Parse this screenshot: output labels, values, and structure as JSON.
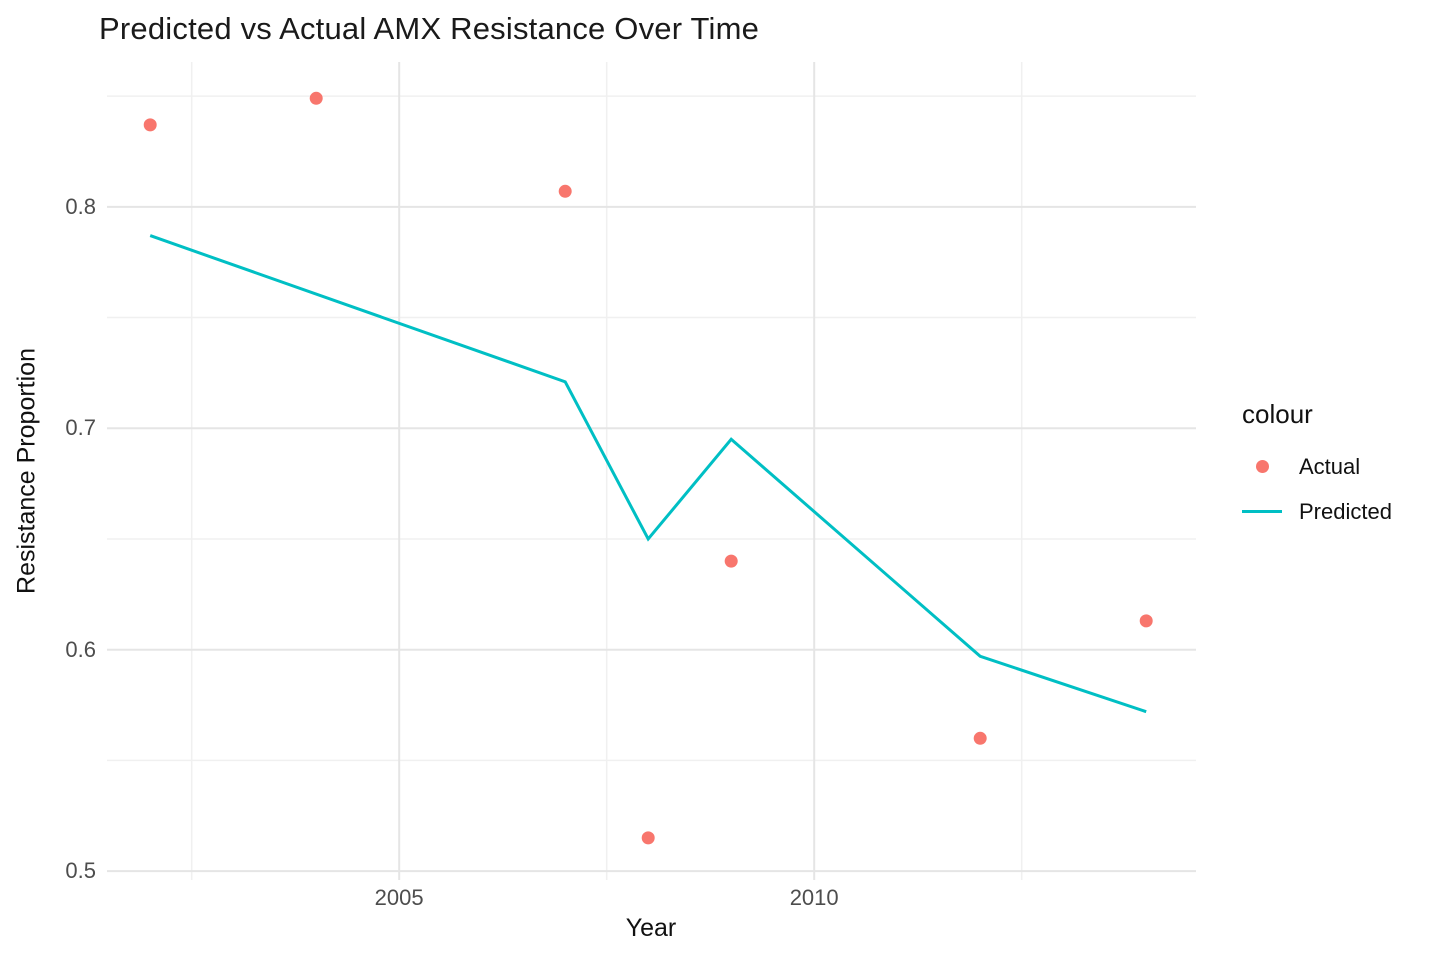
{
  "title": "Predicted vs Actual AMX Resistance Over Time",
  "axes": {
    "x": {
      "label": "Year",
      "tick_labels": [
        "2005",
        "2010"
      ]
    },
    "y": {
      "label": "Resistance Proportion",
      "tick_labels": [
        "0.5",
        "0.6",
        "0.7",
        "0.8"
      ]
    }
  },
  "legend": {
    "title": "colour",
    "items": [
      {
        "label": "Actual",
        "marker": "point",
        "color": "#F8766D"
      },
      {
        "label": "Predicted",
        "marker": "line",
        "color": "#00BFC4"
      }
    ]
  },
  "colors": {
    "actual": "#F8766D",
    "predicted": "#00BFC4",
    "grid_major": "#E5E5E5",
    "grid_minor": "#F0F0F0",
    "tick_text": "#4D4D4D",
    "title_text": "#1A1A1A",
    "background": "#FFFFFF"
  },
  "chart_data": {
    "type": "line",
    "title": "Predicted vs Actual AMX Resistance Over Time",
    "xlabel": "Year",
    "ylabel": "Resistance Proportion",
    "xlim": [
      2001.48,
      2014.6
    ],
    "ylim": [
      0.496,
      0.8654
    ],
    "x_major_ticks": [
      2005,
      2010
    ],
    "x_minor_ticks": [
      2002.5,
      2007.5,
      2012.5
    ],
    "y_major_ticks": [
      0.5,
      0.6,
      0.7,
      0.8
    ],
    "y_minor_ticks": [
      0.55,
      0.65,
      0.75,
      0.85
    ],
    "grid": "major+minor horizontal and vertical, light gray on white",
    "legend_title": "colour",
    "legend_position": "right",
    "series": [
      {
        "name": "Actual",
        "geom": "point",
        "color": "#F8766D",
        "x": [
          2002,
          2004,
          2007,
          2008,
          2009,
          2012,
          2014
        ],
        "y": [
          0.837,
          0.849,
          0.807,
          0.515,
          0.64,
          0.56,
          0.613
        ]
      },
      {
        "name": "Predicted",
        "geom": "line",
        "color": "#00BFC4",
        "x": [
          2002,
          2007,
          2008,
          2009,
          2012,
          2014
        ],
        "y": [
          0.787,
          0.721,
          0.65,
          0.695,
          0.597,
          0.572
        ]
      }
    ]
  }
}
